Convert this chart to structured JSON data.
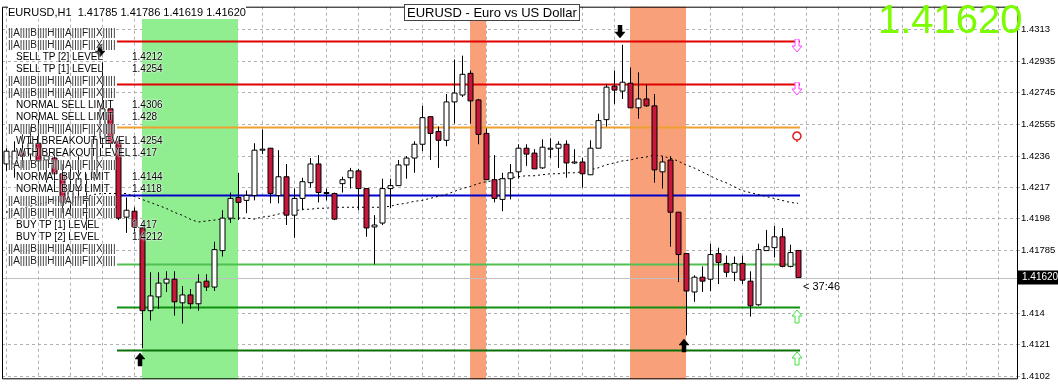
{
  "chart_data": {
    "type": "candlestick",
    "title": "EURUSD - Euro vs US Dollar",
    "subtitle": "EURUSD,H1  1.41785 1.41786 1.41619 1.41620",
    "categories": [
      null,
      null,
      null,
      null,
      null,
      null,
      null,
      null,
      null,
      null,
      null,
      null,
      null,
      null,
      null,
      null,
      null,
      null,
      null,
      null,
      null,
      null,
      null,
      null,
      null,
      null,
      null,
      null,
      null,
      null,
      null,
      null,
      null,
      null,
      null,
      null,
      null,
      null,
      null,
      null,
      null,
      null,
      null,
      null,
      null,
      null,
      null,
      null,
      null,
      null,
      null,
      null,
      null,
      null,
      null,
      null,
      null,
      null,
      null,
      null,
      null,
      null,
      null,
      null,
      null,
      null,
      null,
      null,
      null,
      null,
      null,
      null,
      null,
      null,
      null,
      null,
      null,
      null,
      null,
      null,
      null,
      null,
      null,
      null,
      null,
      null,
      null,
      null,
      null,
      null,
      null,
      null,
      null,
      null,
      null,
      null,
      null,
      null,
      null,
      null,
      null,
      null,
      null,
      null,
      null,
      null,
      null,
      null,
      null,
      null,
      null,
      null,
      null,
      null,
      null,
      null,
      null,
      null,
      null,
      null,
      null,
      null,
      null,
      null,
      null,
      null,
      null
    ],
    "colors": [
      "#ffffff",
      "#ffffff",
      "#c8163c",
      "#ffffff",
      "#c8163c",
      "#ffffff",
      "#c8163c",
      "#c8163c",
      "#ffffff",
      "#ffffff",
      "#ffffff",
      "#ffffff",
      "#ffffff",
      "#c8163c",
      "#c8163c",
      "#ffffff",
      "#c8163c",
      "#c8163c",
      "#ffffff",
      "#ffffff",
      "#ffffff",
      "#c8163c",
      "#ffffff",
      "#c8163c",
      "#ffffff",
      "#c8163c",
      "#ffffff",
      "#ffffff",
      "#ffffff",
      "#c8163c",
      "#ffffff",
      "#ffffff",
      "#ffffff",
      "#c8163c",
      "#ffffff",
      "#c8163c",
      "#ffffff",
      "#ffffff",
      "#ffffff",
      "#c8163c",
      "#ffffff",
      "#c8163c",
      "#ffffff",
      "#ffffff",
      "#c8163c",
      "#c8163c",
      "#ffffff",
      "#ffffff",
      "#ffffff",
      "#ffffff",
      "#ffffff",
      "#ffffff",
      "#ffffff",
      "#c8163c",
      "#c8163c",
      "#ffffff",
      "#ffffff",
      "#ffffff",
      "#c8163c",
      "#c8163c",
      "#c8163c",
      "#c8163c",
      "#ffffff",
      "#ffffff",
      "#ffffff",
      "#c8163c",
      "#c8163c",
      "#ffffff",
      "#ffffff",
      "#ffffff",
      "#c8163c",
      "#ffffff",
      "#c8163c",
      "#ffffff",
      "#ffffff",
      "#ffffff",
      "#c8163c",
      "#ffffff",
      "#c8163c",
      "#ffffff",
      "#c8163c",
      "#c8163c",
      "#ffffff",
      "#c8163c",
      "#c8163c",
      "#c8163c",
      "#ffffff",
      "#c8163c",
      "#ffffff",
      "#c8163c",
      "#c8163c",
      "#ffffff",
      "#c8163c",
      "#c8163c",
      "#ffffff",
      "#ffffff",
      "#ffffff",
      "#c8163c",
      "#ffffff",
      "#c8163c",
      null,
      null,
      null,
      null,
      null,
      null,
      null,
      null,
      null,
      null,
      null,
      null,
      null,
      null,
      null,
      null,
      null,
      null,
      null,
      null,
      null,
      null,
      null,
      null,
      null,
      null,
      null
    ],
    "ohlc": [
      [
        1.42312,
        1.42408,
        1.4227,
        1.4239
      ],
      [
        1.42312,
        1.4245,
        1.42228,
        1.4239
      ],
      [
        1.4239,
        1.42492,
        1.42288,
        1.4236
      ],
      [
        1.42372,
        1.4254,
        1.4233,
        1.42438
      ],
      [
        1.42438,
        1.42588,
        1.4227,
        1.4233
      ],
      [
        1.42336,
        1.42408,
        1.42198,
        1.4236
      ],
      [
        1.42348,
        1.42408,
        1.42168,
        1.42252
      ],
      [
        1.42252,
        1.42312,
        1.42012,
        1.42078
      ],
      [
        1.42078,
        1.42312,
        1.42012,
        1.42144
      ],
      [
        1.4215,
        1.42372,
        1.4209,
        1.42222
      ],
      [
        1.4209,
        1.42252,
        1.4191,
        1.42102
      ],
      [
        1.42228,
        1.42528,
        1.4221,
        1.42462
      ],
      [
        1.42468,
        1.4293,
        1.42408,
        1.42648
      ],
      [
        1.42648,
        1.4269,
        1.42408,
        1.42438
      ],
      [
        1.4245,
        1.42468,
        1.4197,
        1.41982
      ],
      [
        1.41988,
        1.42108,
        1.41892,
        1.4203
      ],
      [
        1.42024,
        1.42048,
        1.41892,
        1.41928
      ],
      [
        1.41922,
        1.41928,
        1.4119,
        1.41418
      ],
      [
        1.41418,
        1.41652,
        1.41358,
        1.41508
      ],
      [
        1.41502,
        1.41652,
        1.4143,
        1.41586
      ],
      [
        1.41586,
        1.41658,
        1.41532,
        1.4161
      ],
      [
        1.4161,
        1.41658,
        1.41388,
        1.41472
      ],
      [
        1.41466,
        1.41568,
        1.4134,
        1.41514
      ],
      [
        1.41514,
        1.4155,
        1.4143,
        1.4146
      ],
      [
        1.4146,
        1.4164,
        1.41418,
        1.41592
      ],
      [
        1.41598,
        1.4164,
        1.41538,
        1.41562
      ],
      [
        1.41562,
        1.41838,
        1.41538,
        1.4179
      ],
      [
        1.41784,
        1.4203,
        1.41748,
        1.41982
      ],
      [
        1.41982,
        1.42138,
        1.41952,
        1.42102
      ],
      [
        1.42108,
        1.42258,
        1.4197,
        1.42078
      ],
      [
        1.4209,
        1.4215,
        1.42012,
        1.4212
      ],
      [
        1.4212,
        1.42438,
        1.4209,
        1.42396
      ],
      [
        1.42402,
        1.42522,
        1.42372,
        1.42402
      ],
      [
        1.42408,
        1.42408,
        1.42072,
        1.42132
      ],
      [
        1.4212,
        1.42396,
        1.42072,
        1.42234
      ],
      [
        1.42234,
        1.42312,
        1.4194,
        1.42
      ],
      [
        1.42,
        1.42162,
        1.41862,
        1.42102
      ],
      [
        1.42102,
        1.42228,
        1.4203,
        1.42204
      ],
      [
        1.42198,
        1.42348,
        1.42168,
        1.42312
      ],
      [
        1.42312,
        1.42366,
        1.42078,
        1.42138
      ],
      [
        1.42138,
        1.42162,
        1.4209,
        1.42138
      ],
      [
        1.42132,
        1.42138,
        1.4197,
        1.41976
      ],
      [
        1.42192,
        1.42234,
        1.42138,
        1.42216
      ],
      [
        1.42228,
        1.42288,
        1.42162,
        1.4227
      ],
      [
        1.4227,
        1.42282,
        1.4203,
        1.42162
      ],
      [
        1.42162,
        1.42162,
        1.41868,
        1.41922
      ],
      [
        1.41928,
        1.42,
        1.417,
        1.4194
      ],
      [
        1.41952,
        1.42222,
        1.4194,
        1.42162
      ],
      [
        1.42162,
        1.42222,
        1.42042,
        1.4218
      ],
      [
        1.4218,
        1.42336,
        1.4218,
        1.42306
      ],
      [
        1.42306,
        1.4236,
        1.42222,
        1.42348
      ],
      [
        1.42348,
        1.4245,
        1.42258,
        1.42432
      ],
      [
        1.42432,
        1.42666,
        1.4239,
        1.42594
      ],
      [
        1.426,
        1.426,
        1.42336,
        1.42498
      ],
      [
        1.4251,
        1.4254,
        1.42288,
        1.42456
      ],
      [
        1.42456,
        1.42738,
        1.4242,
        1.4269
      ],
      [
        1.4269,
        1.42948,
        1.42558,
        1.42744
      ],
      [
        1.42732,
        1.42972,
        1.4272,
        1.42858
      ],
      [
        1.42864,
        1.42882,
        1.42558,
        1.42696
      ],
      [
        1.42702,
        1.42708,
        1.42432,
        1.42492
      ],
      [
        1.42498,
        1.42528,
        1.42216,
        1.42216
      ],
      [
        1.42216,
        1.42366,
        1.42078,
        1.42102
      ],
      [
        1.42096,
        1.42258,
        1.42024,
        1.42222
      ],
      [
        1.42222,
        1.42312,
        1.42096,
        1.42258
      ],
      [
        1.42264,
        1.42432,
        1.42222,
        1.42408
      ],
      [
        1.42408,
        1.42432,
        1.423,
        1.42372
      ],
      [
        1.42378,
        1.42402,
        1.42282,
        1.42282
      ],
      [
        1.42288,
        1.42462,
        1.42282,
        1.42414
      ],
      [
        1.42408,
        1.42468,
        1.42348,
        1.42408
      ],
      [
        1.42408,
        1.4245,
        1.42288,
        1.42432
      ],
      [
        1.42432,
        1.42456,
        1.42228,
        1.42318
      ],
      [
        1.42324,
        1.42402,
        1.42312,
        1.42324
      ],
      [
        1.42324,
        1.42348,
        1.42168,
        1.42252
      ],
      [
        1.42246,
        1.42456,
        1.42246,
        1.42408
      ],
      [
        1.42408,
        1.42618,
        1.42408,
        1.42576
      ],
      [
        1.42582,
        1.42798,
        1.4254,
        1.4278
      ],
      [
        1.42786,
        1.42882,
        1.42678,
        1.42762
      ],
      [
        1.42756,
        1.43038,
        1.42708,
        1.4281
      ],
      [
        1.42804,
        1.429,
        1.42654,
        1.42654
      ],
      [
        1.42654,
        1.4287,
        1.42588,
        1.42708
      ],
      [
        1.42708,
        1.42798,
        1.4266,
        1.42666
      ],
      [
        1.42666,
        1.42738,
        1.42198,
        1.42276
      ],
      [
        1.42264,
        1.4236,
        1.42162,
        1.42324
      ],
      [
        1.42336,
        1.4236,
        1.41808,
        1.42018
      ],
      [
        1.42018,
        1.42018,
        1.41592,
        1.4176
      ],
      [
        1.41766,
        1.41766,
        1.41268,
        1.41538
      ],
      [
        1.41532,
        1.41634,
        1.41472,
        1.41622
      ],
      [
        1.41622,
        1.41688,
        1.41532,
        1.41598
      ],
      [
        1.4161,
        1.41826,
        1.41538,
        1.4176
      ],
      [
        1.41766,
        1.41802,
        1.4158,
        1.41712
      ],
      [
        1.41706,
        1.41754,
        1.41622,
        1.41652
      ],
      [
        1.41652,
        1.41748,
        1.41598,
        1.41706
      ],
      [
        1.41706,
        1.41754,
        1.4158,
        1.41604
      ],
      [
        1.41598,
        1.41658,
        1.41382,
        1.41448
      ],
      [
        1.41454,
        1.41826,
        1.41448,
        1.4179
      ],
      [
        1.41784,
        1.4191,
        1.41784,
        1.41808
      ],
      [
        1.41802,
        1.41934,
        1.41742,
        1.41868
      ],
      [
        1.41868,
        1.41922,
        1.41682,
        1.41688
      ],
      [
        1.41688,
        1.4182,
        1.41682,
        1.41772
      ],
      [
        1.41785,
        1.41786,
        1.41619,
        1.4162
      ],
      null,
      null,
      null,
      null,
      null,
      null,
      null,
      null,
      null,
      null,
      null,
      null,
      null,
      null,
      null,
      null,
      null,
      null,
      null,
      null,
      null,
      null,
      null,
      null,
      null,
      null,
      null
    ],
    "series": [
      {
        "type": "line",
        "color": "#000000",
        "line_style": "dotted",
        "values": [
          1.42018,
          1.4203,
          1.42042,
          1.42054,
          1.42066,
          1.42078,
          1.4209,
          1.42096,
          1.42102,
          1.42108,
          1.42114,
          1.42126,
          1.42132,
          1.42132,
          1.42132,
          1.42132,
          1.42114,
          1.42096,
          1.42078,
          1.4206,
          1.42042,
          1.42018,
          1.42,
          1.41976,
          1.41958,
          1.41964,
          1.4197,
          1.41976,
          1.41976,
          1.41982,
          1.41982,
          1.41976,
          1.41988,
          1.41994,
          1.42006,
          1.42018,
          1.42024,
          1.42036,
          1.42036,
          1.42042,
          1.42042,
          1.42048,
          1.42048,
          1.42048,
          1.42048,
          1.42048,
          1.42048,
          1.42048,
          1.42054,
          1.42066,
          1.42072,
          1.42084,
          1.4209,
          1.42102,
          1.42114,
          1.42126,
          1.42144,
          1.42162,
          1.42174,
          1.42192,
          1.42204,
          1.4221,
          1.42222,
          1.42228,
          1.42234,
          1.4224,
          1.4224,
          1.42246,
          1.42252,
          1.42252,
          1.42258,
          1.42258,
          1.42264,
          1.42276,
          1.42288,
          1.42306,
          1.42318,
          1.4233,
          1.42336,
          1.42348,
          1.42354,
          1.42366,
          1.4236,
          1.42348,
          1.4233,
          1.42306,
          1.42288,
          1.42264,
          1.4224,
          1.42216,
          1.42198,
          1.42174,
          1.4215,
          1.42138,
          1.42126,
          1.42114,
          1.42102,
          1.4209,
          1.42078,
          1.42072,
          null,
          null,
          null,
          null,
          null,
          null,
          null,
          null,
          null,
          null,
          null,
          null,
          null,
          null,
          null,
          null,
          null,
          null,
          null,
          null,
          null,
          null,
          null,
          null,
          null,
          null,
          null
        ]
      }
    ],
    "ylim": [
      1.41,
      1.4327
    ],
    "yticks": [
      1.4313,
      1.42935,
      1.42745,
      1.42555,
      1.4236,
      1.4217,
      1.4198,
      1.41785,
      1.414,
      1.4121,
      1.4102
    ],
    "tick_labels": "y",
    "grid": true,
    "legend": false,
    "ref_lines": [
      {
        "axis": "y",
        "value": 1.4306,
        "color": "#e00000"
      },
      {
        "axis": "y",
        "value": 1.428,
        "color": "#e00000"
      },
      {
        "axis": "y",
        "value": 1.4254,
        "color": "#f0a030"
      },
      {
        "axis": "y",
        "value": 1.4212,
        "color": "#0000c8"
      },
      {
        "axis": "y",
        "value": 1.417,
        "color": "#50c050"
      },
      {
        "axis": "y",
        "value": 1.4144,
        "color": "#109010"
      },
      {
        "axis": "y",
        "value": 1.4118,
        "color": "#0a700a"
      },
      {
        "axis": "y",
        "value": 1.4162,
        "label": "1.41620",
        "color": "#c0c0c0"
      }
    ],
    "annotations": [
      "||A||||B||||H||||A||||F|||X|||||",
      "||A||||B||||H||||A||||F|||X|||||",
      "SELL TP [2] LEVEL 1.4212",
      "SELL TP [1] LEVEL 1.4254",
      "||A||||B||||H||||A||||F|||X|||||",
      "||A||||B||||H||||A||||F|||X|||||",
      "NORMAL SELL LIMIT 1.4306",
      "NORMAL SELL LIMIT 1.428",
      "||A||||B||||H||||A||||F|||X|||||",
      "WTH BREAKOUT LEVEL 1.4254",
      "WTH BREAKOUT LEVEL 1.417",
      "||A||||B||||H||||A||||F|||X|||||",
      "NORMAL BUY LIMIT 1.4144",
      "NORMAL BUY LIMIT 1.4118",
      "||A||||B||||H||||A||||F|||X|||||",
      "||A||||B||||H||||A||||F|||X|||||",
      "BUY TP [1] LEVEL 1.417",
      "BUY TP [2] LEVEL 1.4212",
      "||A||||B||||H||||A||||F|||X|||||",
      "||A||||B||||H||||A||||F|||X|||||",
      "1.41620",
      "< 37:46"
    ]
  }
}
